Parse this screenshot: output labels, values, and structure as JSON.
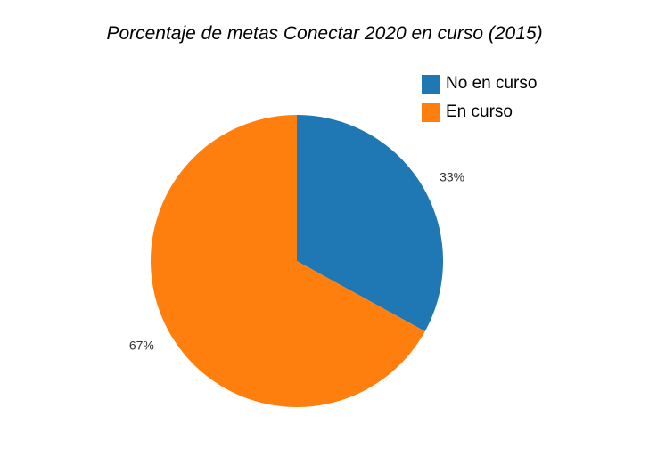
{
  "chart_data": {
    "type": "pie",
    "title": "Porcentaje de metas Conectar 2020 en curso (2015)",
    "legend_position": "top-right",
    "slices": [
      {
        "name": "No en curso",
        "value": 33,
        "label": "33%",
        "color": "#1f77b4"
      },
      {
        "name": "En curso",
        "value": 67,
        "label": "67%",
        "color": "#ff7f0e"
      }
    ]
  }
}
